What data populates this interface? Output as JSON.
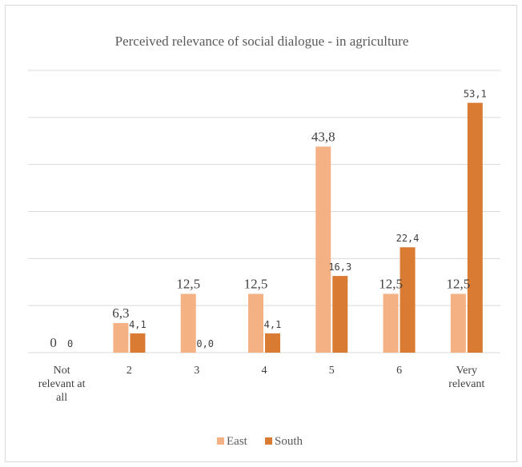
{
  "chart_data": {
    "type": "bar",
    "title": "Perceived relevance of social dialogue - in agriculture",
    "categories": [
      [
        "Not",
        "relevant at",
        "all"
      ],
      [
        "2"
      ],
      [
        "3"
      ],
      [
        "4"
      ],
      [
        "5"
      ],
      [
        "6"
      ],
      [
        "Very",
        "relevant"
      ]
    ],
    "series": [
      {
        "name": "East",
        "color": "#f4b183",
        "values": [
          0,
          6.3,
          12.5,
          12.5,
          43.8,
          12.5,
          12.5
        ],
        "labels": [
          "0",
          "6,3",
          "12,5",
          "12,5",
          "43,8",
          "12,5",
          "12,5"
        ]
      },
      {
        "name": "South",
        "color": "#d97b33",
        "values": [
          0,
          4.1,
          0,
          4.1,
          16.3,
          22.4,
          53.1
        ],
        "labels": [
          "0",
          "4,1",
          "0,0",
          "4,1",
          "16,3",
          "22,4",
          "53,1"
        ]
      }
    ],
    "ylim": [
      0,
      60
    ],
    "grid": true,
    "legend_position": "bottom"
  }
}
